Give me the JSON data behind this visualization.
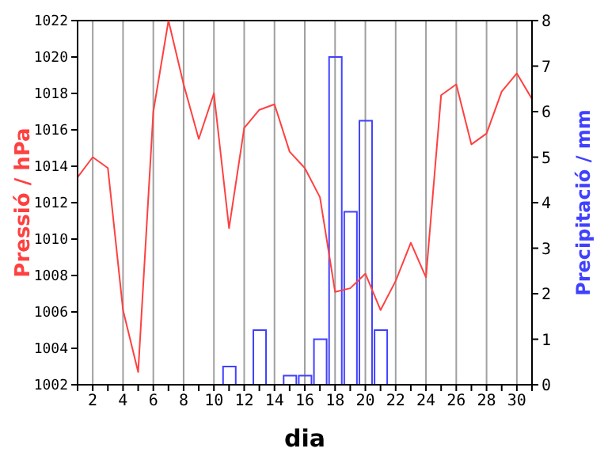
{
  "chart_data": {
    "type": "line",
    "xlabel": "dia",
    "ylabel": "Pressió / hPa",
    "y2label": "Precipitació / mm",
    "x": [
      1,
      2,
      3,
      4,
      5,
      6,
      7,
      8,
      9,
      10,
      11,
      12,
      13,
      14,
      15,
      16,
      17,
      18,
      19,
      20,
      21,
      22,
      23,
      24,
      25,
      26,
      27,
      28,
      29,
      30,
      31
    ],
    "series": [
      {
        "color": "#ff4040",
        "values": [
          1013.4,
          1014.5,
          1013.9,
          1006.1,
          1002.7,
          1017,
          1022,
          1018.5,
          1015.5,
          1018,
          1010.6,
          1016.1,
          1017.1,
          1017.4,
          1014.8,
          1013.9,
          1012.3,
          1007.1,
          1007.3,
          1008.1,
          1006.1,
          1007.7,
          1009.8,
          1007.9,
          1017.9,
          1018.5,
          1015.2,
          1015.8,
          1018.1,
          1019.1,
          1017.7
        ]
      },
      {
        "type": "bar",
        "axis": "y2",
        "color": "#4040ff",
        "values": [
          0,
          0,
          0,
          0,
          0,
          0,
          0,
          0,
          0,
          0,
          0.4,
          0,
          1.2,
          0,
          0.2,
          0.2,
          1.0,
          7.2,
          3.8,
          5.8,
          1.2,
          0,
          0,
          0,
          0,
          0,
          0,
          0,
          0,
          0,
          0
        ]
      }
    ],
    "xlim": [
      1,
      31
    ],
    "xticks": [
      {
        "value": 1,
        "label": null
      },
      2,
      {
        "value": 3,
        "label": null
      },
      4,
      {
        "value": 5,
        "label": null
      },
      6,
      {
        "value": 7,
        "label": null
      },
      8,
      {
        "value": 9,
        "label": null
      },
      10,
      {
        "value": 11,
        "label": null
      },
      12,
      {
        "value": 13,
        "label": null
      },
      14,
      {
        "value": 15,
        "label": null
      },
      16,
      {
        "value": 17,
        "label": null
      },
      18,
      {
        "value": 19,
        "label": null
      },
      20,
      {
        "value": 21,
        "label": null
      },
      22,
      {
        "value": 23,
        "label": null
      },
      24,
      {
        "value": 25,
        "label": null
      },
      26,
      {
        "value": 27,
        "label": null
      },
      28,
      {
        "value": 29,
        "label": null
      },
      30,
      {
        "value": 31,
        "label": null
      }
    ],
    "ylim": [
      1002,
      1022
    ],
    "yticks": [
      1002,
      1004,
      1006,
      1008,
      1010,
      1012,
      1014,
      1016,
      1018,
      1020,
      1022
    ],
    "y2lim": [
      0,
      8
    ],
    "y2ticks": [
      0,
      1,
      2,
      3,
      4,
      5,
      6,
      7,
      8
    ],
    "grid": true,
    "legend": false,
    "marker": "none",
    "line_style": "solid"
  }
}
